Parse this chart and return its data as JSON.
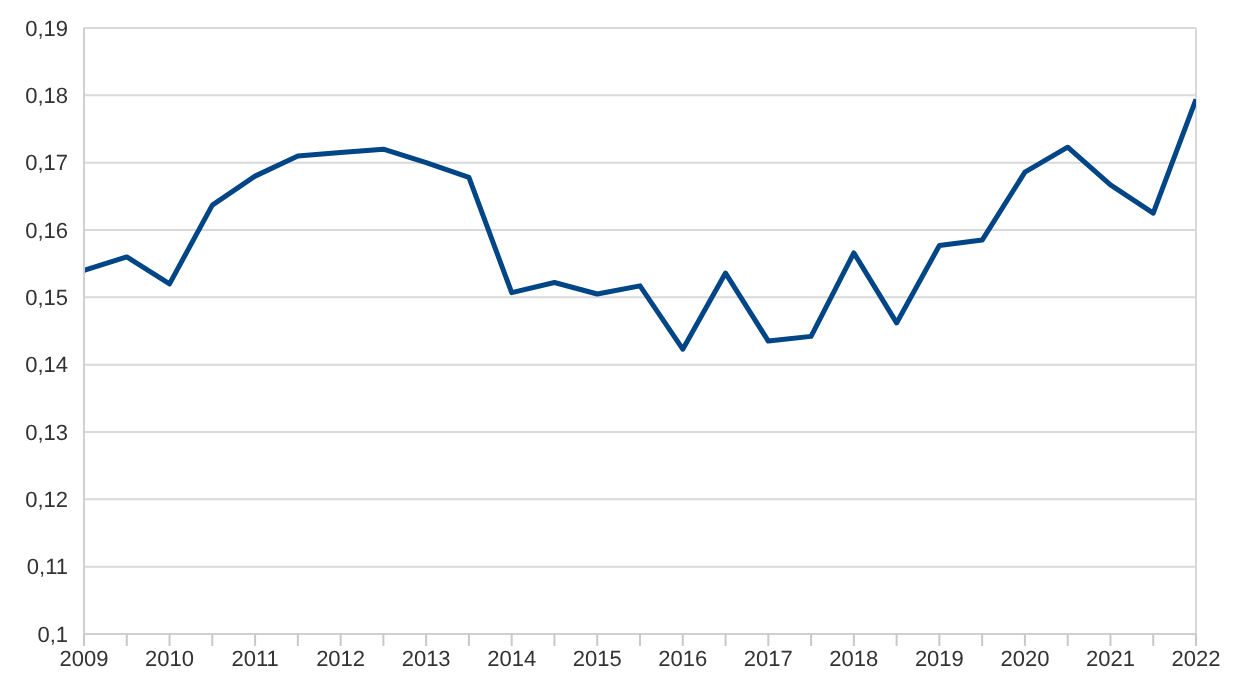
{
  "chart_data": {
    "type": "line",
    "x": [
      2009,
      2009.5,
      2010,
      2010.5,
      2011,
      2011.5,
      2012,
      2012.5,
      2013,
      2013.5,
      2014,
      2014.5,
      2015,
      2015.5,
      2016,
      2016.5,
      2017,
      2017.5,
      2018,
      2018.5,
      2019,
      2019.5,
      2020,
      2020.5,
      2021,
      2021.5,
      2022
    ],
    "series": [
      {
        "color": "#004586",
        "values": [
          0.154,
          0.156,
          0.152,
          0.1637,
          0.168,
          0.171,
          0.1715,
          0.172,
          0.17,
          0.1678,
          0.1507,
          0.1522,
          0.1505,
          0.1517,
          0.1423,
          0.1536,
          0.1435,
          0.1442,
          0.1566,
          0.1462,
          0.1577,
          0.1585,
          0.1686,
          0.1723,
          0.1667,
          0.1625,
          0.1794
        ]
      }
    ],
    "xlim": [
      2009,
      2022
    ],
    "xticks": [
      2009,
      {
        "value": 2009.5,
        "label": null
      },
      2010,
      {
        "value": 2010.5,
        "label": null
      },
      2011,
      {
        "value": 2011.5,
        "label": null
      },
      2012,
      {
        "value": 2012.5,
        "label": null
      },
      2013,
      {
        "value": 2013.5,
        "label": null
      },
      2014,
      {
        "value": 2014.5,
        "label": null
      },
      2015,
      {
        "value": 2015.5,
        "label": null
      },
      2016,
      {
        "value": 2016.5,
        "label": null
      },
      2017,
      {
        "value": 2017.5,
        "label": null
      },
      2018,
      {
        "value": 2018.5,
        "label": null
      },
      2019,
      {
        "value": 2019.5,
        "label": null
      },
      2020,
      {
        "value": 2020.5,
        "label": null
      },
      2021,
      {
        "value": 2021.5,
        "label": null
      },
      2022
    ],
    "ylim": [
      0.1,
      0.19
    ],
    "yticks": [
      {
        "value": 0.1,
        "label": "0,1"
      },
      {
        "value": 0.11,
        "label": "0,11"
      },
      {
        "value": 0.12,
        "label": "0,12"
      },
      {
        "value": 0.13,
        "label": "0,13"
      },
      {
        "value": 0.14,
        "label": "0,14"
      },
      {
        "value": 0.15,
        "label": "0,15"
      },
      {
        "value": 0.16,
        "label": "0,16"
      },
      {
        "value": 0.17,
        "label": "0,17"
      },
      {
        "value": 0.18,
        "label": "0,18"
      },
      {
        "value": 0.19,
        "label": "0,19"
      }
    ],
    "grid": "y",
    "legend": false,
    "marker": "none",
    "line_style": "solid"
  }
}
